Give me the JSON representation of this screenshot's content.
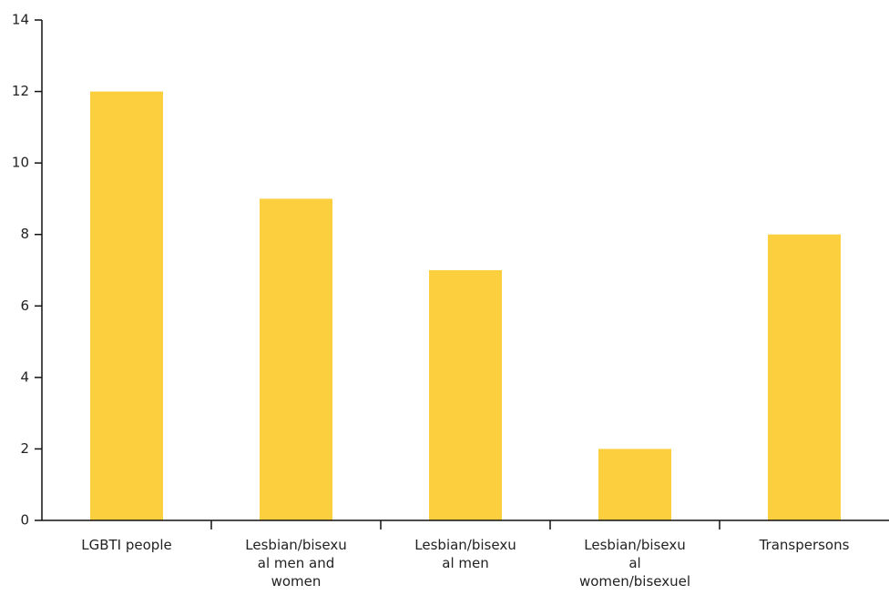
{
  "colors": {
    "bar": "#FCCF3E",
    "axis": "#111111",
    "text": "#222222",
    "background": "#ffffff"
  },
  "chart_data": {
    "type": "bar",
    "title": "",
    "xlabel": "",
    "ylabel": "",
    "categories": [
      "LGBTI people",
      "Lesbian/bisexual men and women",
      "Lesbian/bisexual men",
      "Lesbian/bisexual women/bisexuel",
      "Transpersons"
    ],
    "category_label_lines": [
      [
        "LGBTI people"
      ],
      [
        "Lesbian/bisexu",
        "al men and",
        "women"
      ],
      [
        "Lesbian/bisexu",
        "al men"
      ],
      [
        "Lesbian/bisexu",
        "al",
        "women/bisexuel"
      ],
      [
        "Transpersons"
      ]
    ],
    "values": [
      12,
      9,
      7,
      2,
      8
    ],
    "ylim": [
      0,
      14
    ],
    "yticks": [
      0,
      2,
      4,
      6,
      8,
      10,
      12,
      14
    ],
    "ytick_labels": [
      "0",
      "2",
      "4",
      "6",
      "8",
      "10",
      "12",
      "14"
    ],
    "grid": false,
    "legend": "none"
  }
}
